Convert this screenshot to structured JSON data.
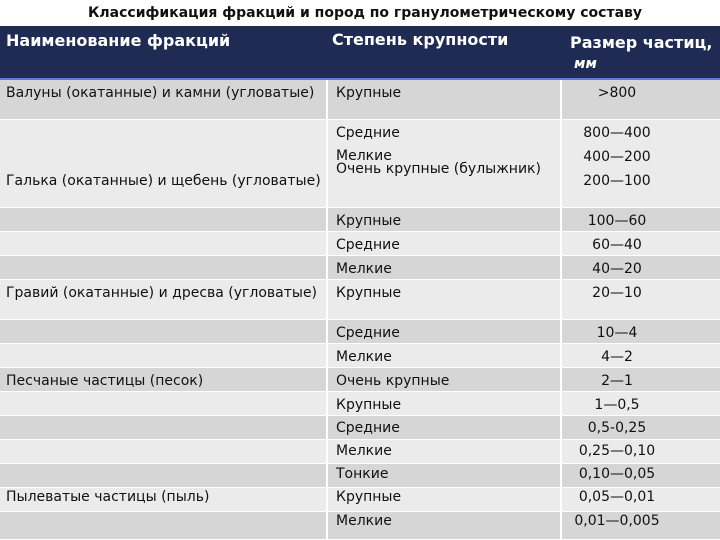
{
  "title": "Классификация фракций и пород по гранулометрическому составу",
  "headers": {
    "name": "Наименование   фракций",
    "degree": "Степень крупности",
    "size": "Размер частиц,",
    "size_unit": "мм"
  },
  "names": [
    "Валуны (окатанные) и камни (угловатые)",
    "Галька (окатанные) и щебень (угловатые)",
    "Гравий (окатанные) и дресва (угловатые)",
    "Песчаные частицы (песок)",
    "Пылеватые частицы (пыль)"
  ],
  "degrees": [
    "Крупные",
    "Средние",
    "Мелкие",
    "Очень крупные (булыжник)",
    "Крупные",
    "Средние",
    "Мелкие",
    "Крупные",
    "Средние",
    "Мелкие",
    "Очень крупные",
    "Крупные",
    "Средние",
    "Мелкие",
    "Тонкие",
    "Крупные",
    "Мелкие"
  ],
  "sizes": [
    ">800",
    "800—400",
    "400—200",
    "200—100",
    "100—60",
    "60—40",
    "40—20",
    "20—10",
    "10—4",
    "4—2",
    "2—1",
    "1—0,5",
    "0,5-0,25",
    "0,25—0,10",
    "0,10—0,05",
    "0,05—0,01",
    "0,01—0,005"
  ]
}
